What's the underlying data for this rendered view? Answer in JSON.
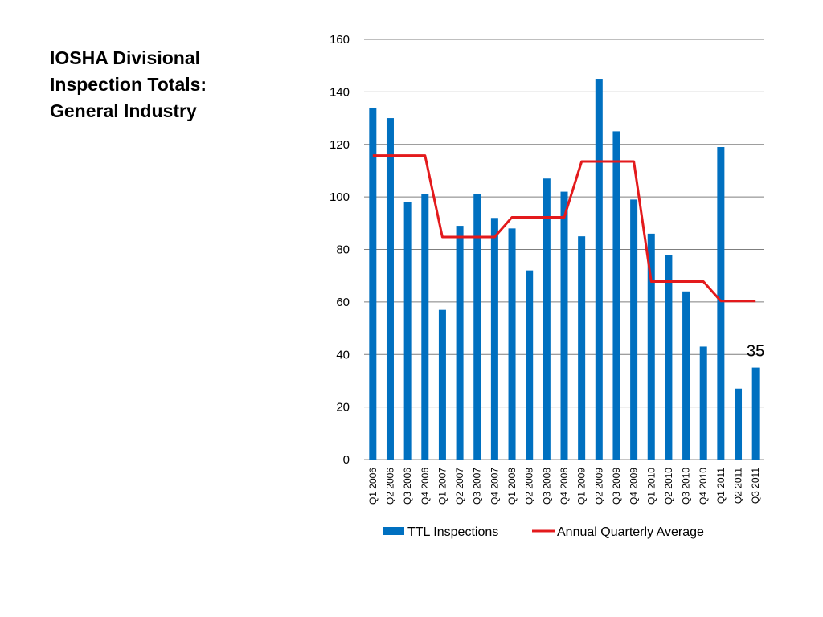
{
  "slide": {
    "title_lines": [
      "IOSHA Divisional",
      "Inspection Totals:",
      "General Industry"
    ]
  },
  "chart_data": {
    "type": "bar",
    "categories": [
      "Q1 2006",
      "Q2 2006",
      "Q3 2006",
      "Q4 2006",
      "Q1 2007",
      "Q2 2007",
      "Q3 2007",
      "Q4 2007",
      "Q1 2008",
      "Q2 2008",
      "Q3 2008",
      "Q4 2008",
      "Q1 2009",
      "Q2 2009",
      "Q3 2009",
      "Q4 2009",
      "Q1 2010",
      "Q2 2010",
      "Q3 2010",
      "Q4 2010",
      "Q1 2011",
      "Q2 2011",
      "Q3 2011"
    ],
    "series": [
      {
        "name": "TTL Inspections",
        "type": "bar",
        "color": "#0070C0",
        "values": [
          134,
          130,
          98,
          101,
          57,
          89,
          101,
          92,
          88,
          72,
          107,
          102,
          85,
          145,
          125,
          99,
          86,
          78,
          64,
          43,
          119,
          27,
          35
        ]
      },
      {
        "name": "Annual Quarterly Average",
        "type": "line",
        "color": "#E31A1C",
        "values": [
          115.75,
          115.75,
          115.75,
          115.75,
          84.75,
          84.75,
          84.75,
          84.75,
          92.25,
          92.25,
          92.25,
          92.25,
          113.5,
          113.5,
          113.5,
          113.5,
          67.75,
          67.75,
          67.75,
          67.75,
          60.33,
          60.33,
          60.33
        ]
      }
    ],
    "ylim": [
      0,
      160
    ],
    "yticks": [
      0,
      20,
      40,
      60,
      80,
      100,
      120,
      140,
      160
    ],
    "grid": true,
    "legend_position": "bottom",
    "annotations": [
      {
        "category": "Q3 2011",
        "text": "35"
      }
    ]
  }
}
